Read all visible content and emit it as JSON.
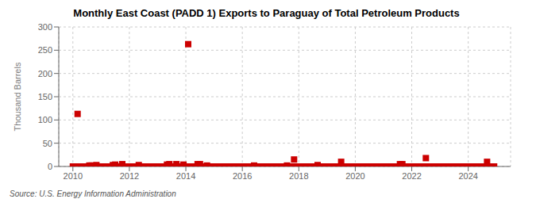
{
  "chart_data": {
    "type": "scatter",
    "title": "Monthly East Coast (PADD 1) Exports to Paraguay of Total Petroleum Products",
    "ylabel": "Thousand Barrels",
    "source": "Source: U.S. Energy Information Administration",
    "color": "#cc0000",
    "marker": "square",
    "grid": true,
    "xlim": [
      2009.5,
      2025.5
    ],
    "xticks": [
      2010,
      2012,
      2014,
      2016,
      2018,
      2020,
      2022,
      2024
    ],
    "ylim": [
      0,
      300
    ],
    "yticks": [
      0,
      50,
      100,
      150,
      200,
      250,
      300
    ],
    "x": [
      2010.0,
      2010.083,
      2010.167,
      2010.25,
      2010.333,
      2010.417,
      2010.5,
      2010.583,
      2010.667,
      2010.75,
      2010.833,
      2010.917,
      2011.0,
      2011.083,
      2011.167,
      2011.25,
      2011.333,
      2011.417,
      2011.5,
      2011.583,
      2011.667,
      2011.75,
      2011.833,
      2011.917,
      2012.0,
      2012.083,
      2012.167,
      2012.25,
      2012.333,
      2012.417,
      2012.5,
      2012.583,
      2012.667,
      2012.75,
      2012.833,
      2012.917,
      2013.0,
      2013.083,
      2013.167,
      2013.25,
      2013.333,
      2013.417,
      2013.5,
      2013.583,
      2013.667,
      2013.75,
      2013.833,
      2013.917,
      2014.0,
      2014.083,
      2014.167,
      2014.25,
      2014.333,
      2014.417,
      2014.5,
      2014.583,
      2014.667,
      2014.75,
      2014.833,
      2014.917,
      2015.0,
      2015.083,
      2015.167,
      2015.25,
      2015.333,
      2015.417,
      2015.5,
      2015.583,
      2015.667,
      2015.75,
      2015.833,
      2015.917,
      2016.0,
      2016.083,
      2016.167,
      2016.25,
      2016.333,
      2016.417,
      2016.5,
      2016.583,
      2016.667,
      2016.75,
      2016.833,
      2016.917,
      2017.0,
      2017.083,
      2017.167,
      2017.25,
      2017.333,
      2017.417,
      2017.5,
      2017.583,
      2017.667,
      2017.75,
      2017.833,
      2017.917,
      2018.0,
      2018.083,
      2018.167,
      2018.25,
      2018.333,
      2018.417,
      2018.5,
      2018.583,
      2018.667,
      2018.75,
      2018.833,
      2018.917,
      2019.0,
      2019.083,
      2019.167,
      2019.25,
      2019.333,
      2019.417,
      2019.5,
      2019.583,
      2019.667,
      2019.75,
      2019.833,
      2019.917,
      2020.0,
      2020.083,
      2020.167,
      2020.25,
      2020.333,
      2020.417,
      2020.5,
      2020.583,
      2020.667,
      2020.75,
      2020.833,
      2020.917,
      2021.0,
      2021.083,
      2021.167,
      2021.25,
      2021.333,
      2021.417,
      2021.5,
      2021.583,
      2021.667,
      2021.75,
      2021.833,
      2021.917,
      2022.0,
      2022.083,
      2022.167,
      2022.25,
      2022.333,
      2022.417,
      2022.5,
      2022.583,
      2022.667,
      2022.75,
      2022.833,
      2022.917,
      2023.0,
      2023.083,
      2023.167,
      2023.25,
      2023.333,
      2023.417,
      2023.5,
      2023.583,
      2023.667,
      2023.75,
      2023.833,
      2023.917,
      2024.0,
      2024.083,
      2024.167,
      2024.25,
      2024.333,
      2024.417,
      2024.5,
      2024.583,
      2024.667,
      2024.75,
      2024.833,
      2024.917
    ],
    "values": [
      0,
      0,
      113,
      0,
      0,
      0,
      0,
      2,
      2,
      0,
      3,
      0,
      0,
      0,
      0,
      0,
      0,
      3,
      4,
      0,
      0,
      5,
      0,
      0,
      0,
      0,
      0,
      0,
      3,
      0,
      0,
      0,
      0,
      0,
      0,
      0,
      0,
      0,
      0,
      0,
      4,
      5,
      0,
      0,
      5,
      0,
      0,
      4,
      0,
      263,
      0,
      0,
      0,
      5,
      5,
      0,
      0,
      2,
      0,
      0,
      0,
      0,
      0,
      0,
      0,
      0,
      0,
      0,
      0,
      0,
      0,
      0,
      0,
      0,
      0,
      0,
      0,
      2,
      0,
      0,
      0,
      0,
      0,
      0,
      0,
      0,
      0,
      0,
      0,
      0,
      0,
      2,
      0,
      0,
      15,
      0,
      0,
      0,
      0,
      0,
      0,
      0,
      0,
      0,
      3,
      0,
      0,
      0,
      0,
      0,
      0,
      0,
      0,
      0,
      10,
      0,
      0,
      0,
      0,
      0,
      0,
      0,
      0,
      0,
      0,
      0,
      0,
      0,
      0,
      0,
      0,
      0,
      0,
      0,
      0,
      0,
      0,
      0,
      0,
      5,
      5,
      0,
      0,
      0,
      0,
      0,
      0,
      0,
      0,
      0,
      18,
      0,
      0,
      0,
      0,
      0,
      0,
      0,
      0,
      0,
      0,
      0,
      0,
      0,
      0,
      0,
      0,
      0,
      0,
      0,
      0,
      0,
      0,
      0,
      0,
      0,
      10,
      0,
      0,
      0
    ]
  }
}
